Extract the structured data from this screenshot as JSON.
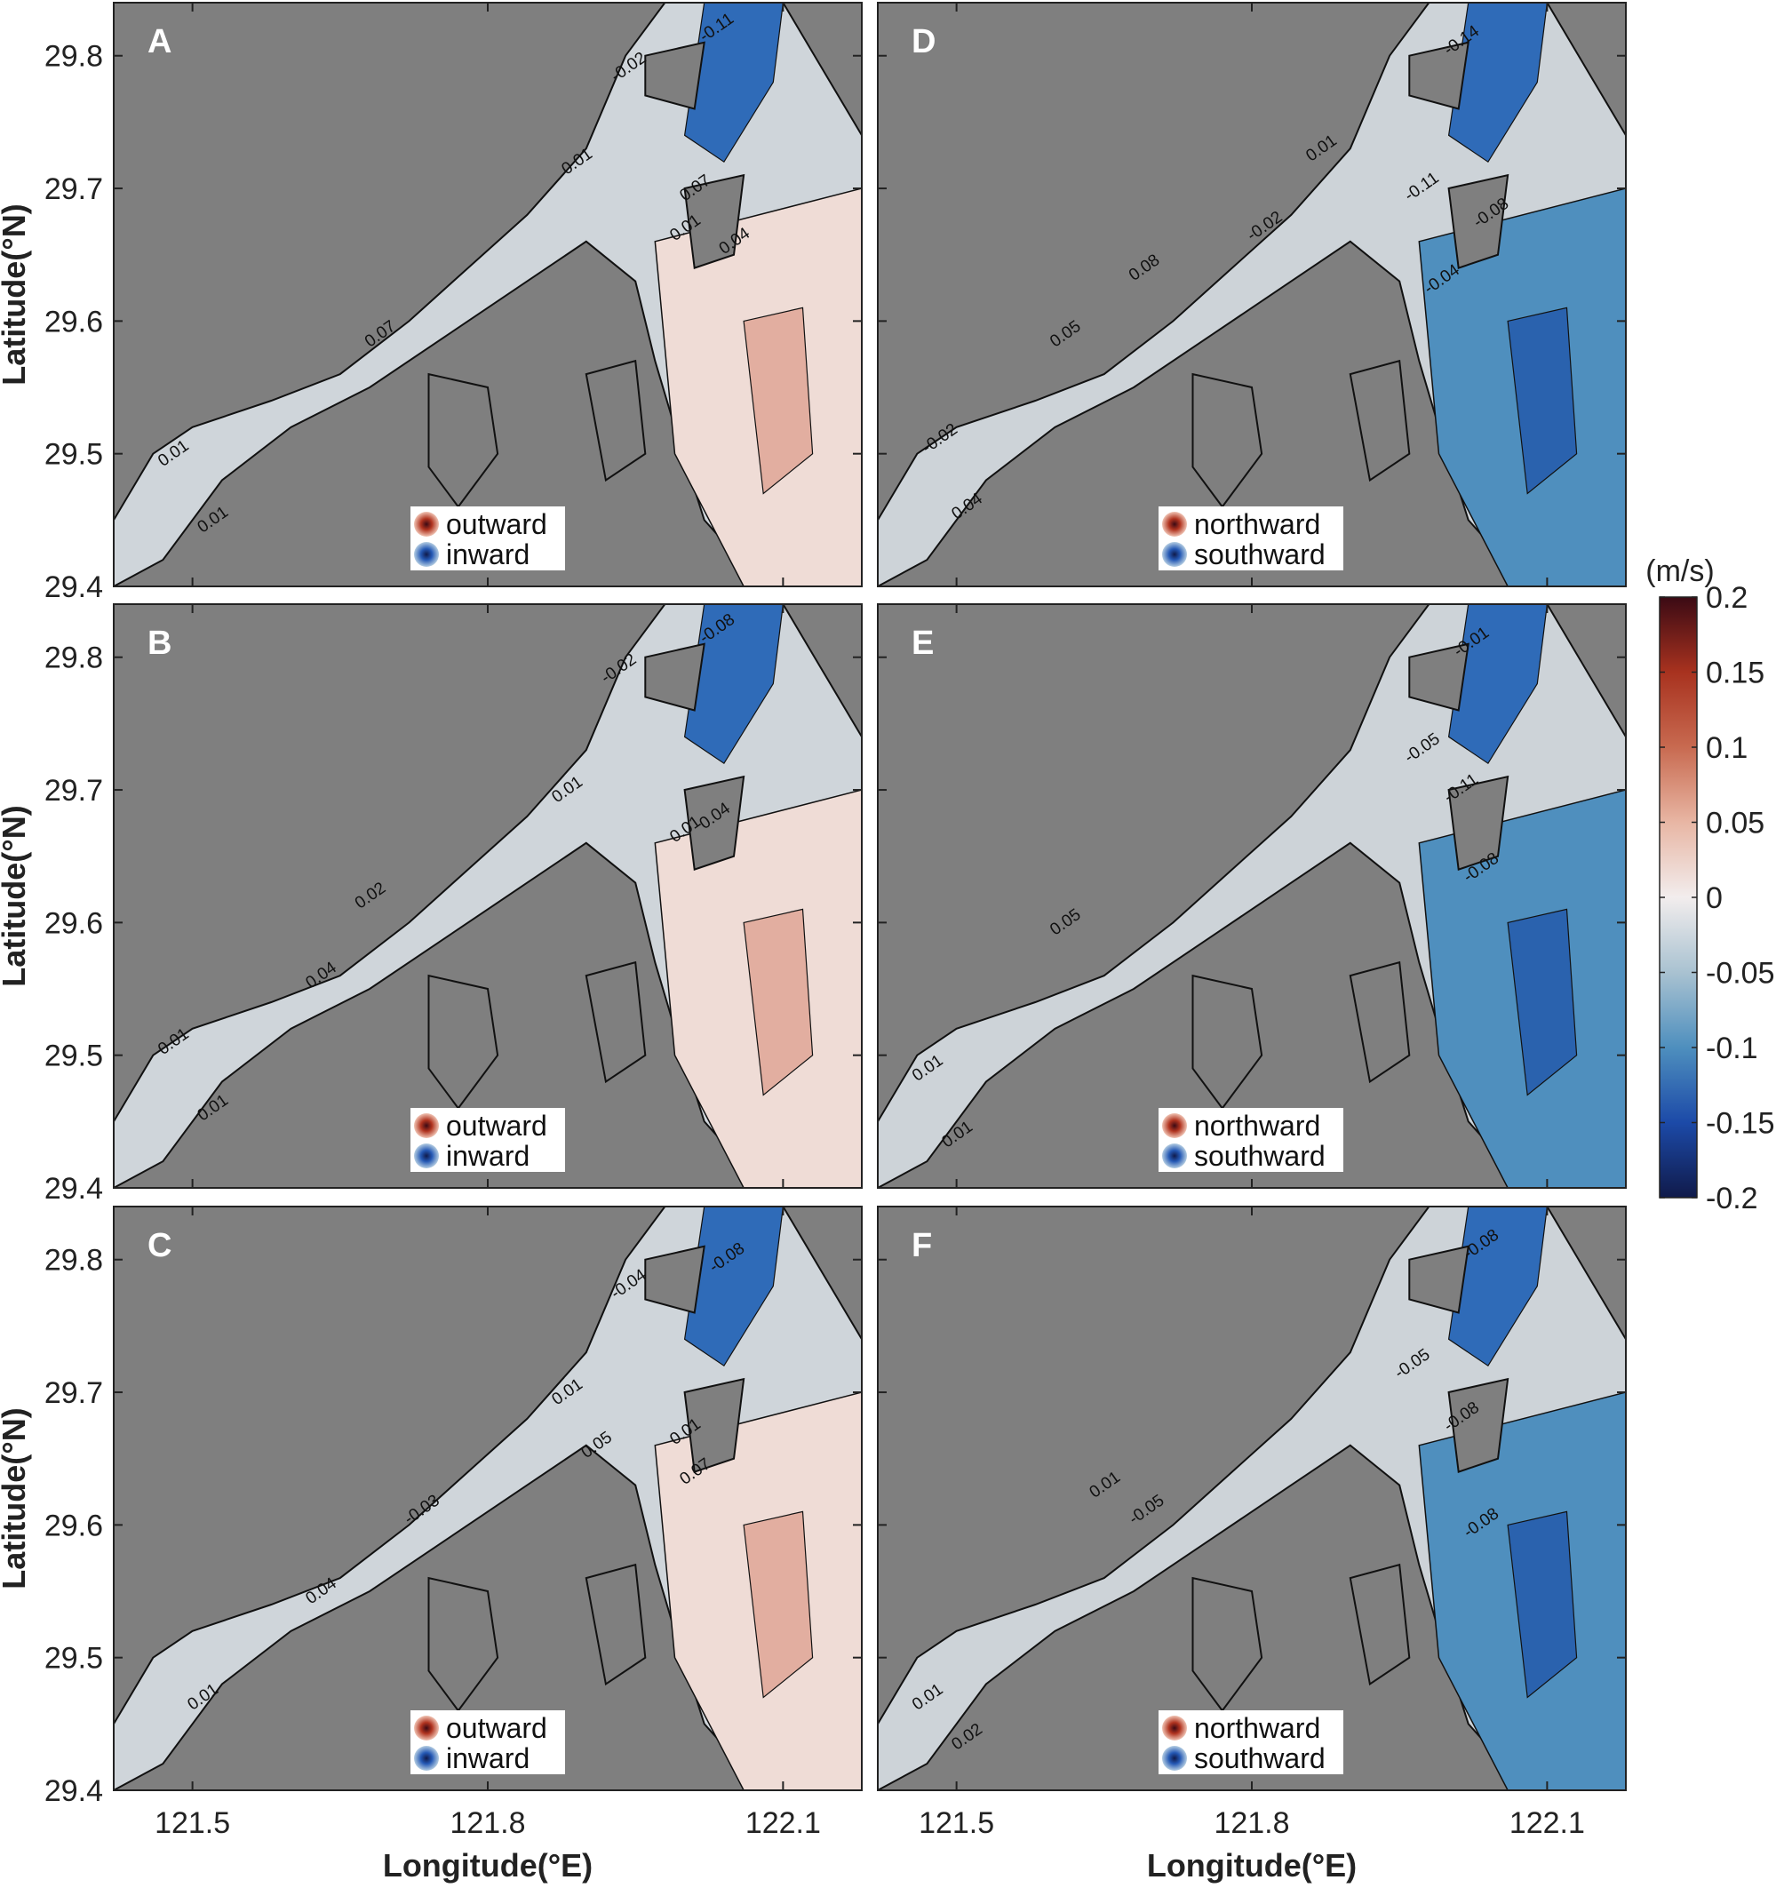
{
  "chart_data": {
    "type": "heatmap",
    "variable_unit": "(m/s)",
    "xlabel": "Longitude(°E)",
    "ylabel": "Latitude(°N)",
    "xlim": [
      121.42,
      122.18
    ],
    "ylim": [
      29.4,
      29.84
    ],
    "x_ticks": [
      121.5,
      121.8,
      122.1
    ],
    "x_tick_labels": [
      "121.5",
      "121.8",
      "122.1"
    ],
    "y_ticks": [
      29.4,
      29.5,
      29.6,
      29.7,
      29.8
    ],
    "y_tick_labels": [
      "29.4",
      "29.5",
      "29.6",
      "29.7",
      "29.8"
    ],
    "colorbar": {
      "min": -0.2,
      "max": 0.2,
      "ticks": [
        0.2,
        0.15,
        0.1,
        0.05,
        0,
        -0.05,
        -0.1,
        -0.15,
        -0.2
      ],
      "tick_labels": [
        "0.2",
        "0.15",
        "0.1",
        "0.05",
        "0",
        "-0.05",
        "-0.1",
        "-0.15",
        "-0.2"
      ],
      "colors": [
        "#3b0a14",
        "#a8321f",
        "#e0a08c",
        "#f2eaea",
        "#cdd3d8",
        "#9fbccb",
        "#4e8fbe",
        "#1c4aa8",
        "#101a4a"
      ]
    },
    "land_color": "#7f7f7f",
    "panels": [
      {
        "id": "A",
        "letter": "A",
        "column": 1,
        "row": 1,
        "component": "east-west",
        "legend": [
          "outward",
          "inward"
        ],
        "dominant_offshore_sign": "positive",
        "contour_labels": [
          {
            "text": "-0.11",
            "lon": 122.02,
            "lat": 29.81
          },
          {
            "text": "-0.02",
            "lon": 121.93,
            "lat": 29.78
          },
          {
            "text": "0.01",
            "lon": 121.88,
            "lat": 29.71
          },
          {
            "text": "0.07",
            "lon": 122.0,
            "lat": 29.69
          },
          {
            "text": "0.01",
            "lon": 121.99,
            "lat": 29.66
          },
          {
            "text": "0.04",
            "lon": 122.04,
            "lat": 29.65
          },
          {
            "text": "0.07",
            "lon": 121.68,
            "lat": 29.58
          },
          {
            "text": "0.01",
            "lon": 121.47,
            "lat": 29.49
          },
          {
            "text": "0.01",
            "lon": 121.51,
            "lat": 29.44
          }
        ]
      },
      {
        "id": "B",
        "letter": "B",
        "column": 1,
        "row": 2,
        "component": "east-west",
        "legend": [
          "outward",
          "inward"
        ],
        "dominant_offshore_sign": "positive",
        "contour_labels": [
          {
            "text": "-0.08",
            "lon": 122.02,
            "lat": 29.81
          },
          {
            "text": "-0.02",
            "lon": 121.92,
            "lat": 29.78
          },
          {
            "text": "0.01",
            "lon": 121.87,
            "lat": 29.69
          },
          {
            "text": "0.01",
            "lon": 121.99,
            "lat": 29.66
          },
          {
            "text": "0.04",
            "lon": 122.02,
            "lat": 29.67
          },
          {
            "text": "0.02",
            "lon": 121.67,
            "lat": 29.61
          },
          {
            "text": "0.04",
            "lon": 121.62,
            "lat": 29.55
          },
          {
            "text": "0.01",
            "lon": 121.47,
            "lat": 29.5
          },
          {
            "text": "0.01",
            "lon": 121.51,
            "lat": 29.45
          }
        ]
      },
      {
        "id": "C",
        "letter": "C",
        "column": 1,
        "row": 3,
        "component": "east-west",
        "legend": [
          "outward",
          "inward"
        ],
        "dominant_offshore_sign": "positive",
        "contour_labels": [
          {
            "text": "-0.08",
            "lon": 122.03,
            "lat": 29.79
          },
          {
            "text": "-0.04",
            "lon": 121.93,
            "lat": 29.77
          },
          {
            "text": "0.01",
            "lon": 121.87,
            "lat": 29.69
          },
          {
            "text": "0.05",
            "lon": 121.9,
            "lat": 29.65
          },
          {
            "text": "0.01",
            "lon": 121.99,
            "lat": 29.66
          },
          {
            "text": "0.07",
            "lon": 122.0,
            "lat": 29.63
          },
          {
            "text": "-0.03",
            "lon": 121.72,
            "lat": 29.6
          },
          {
            "text": "0.04",
            "lon": 121.62,
            "lat": 29.54
          },
          {
            "text": "0.01",
            "lon": 121.5,
            "lat": 29.46
          }
        ]
      },
      {
        "id": "D",
        "letter": "D",
        "column": 2,
        "row": 1,
        "component": "north-south",
        "legend": [
          "northward",
          "southward"
        ],
        "dominant_offshore_sign": "negative",
        "contour_labels": [
          {
            "text": "-0.14",
            "lon": 122.0,
            "lat": 29.8
          },
          {
            "text": "0.01",
            "lon": 121.86,
            "lat": 29.72
          },
          {
            "text": "-0.11",
            "lon": 121.96,
            "lat": 29.69
          },
          {
            "text": "-0.08",
            "lon": 122.03,
            "lat": 29.67
          },
          {
            "text": "-0.02",
            "lon": 121.8,
            "lat": 29.66
          },
          {
            "text": "0.08",
            "lon": 121.68,
            "lat": 29.63
          },
          {
            "text": "-0.04",
            "lon": 121.98,
            "lat": 29.62
          },
          {
            "text": "0.05",
            "lon": 121.6,
            "lat": 29.58
          },
          {
            "text": "-0.02",
            "lon": 121.47,
            "lat": 29.5
          },
          {
            "text": "0.04",
            "lon": 121.5,
            "lat": 29.45
          }
        ]
      },
      {
        "id": "E",
        "letter": "E",
        "column": 2,
        "row": 2,
        "component": "north-south",
        "legend": [
          "northward",
          "southward"
        ],
        "dominant_offshore_sign": "negative",
        "contour_labels": [
          {
            "text": "-0.01",
            "lon": 122.01,
            "lat": 29.8
          },
          {
            "text": "-0.05",
            "lon": 121.96,
            "lat": 29.72
          },
          {
            "text": "-0.11",
            "lon": 122.0,
            "lat": 29.69
          },
          {
            "text": "-0.08",
            "lon": 122.02,
            "lat": 29.63
          },
          {
            "text": "0.05",
            "lon": 121.6,
            "lat": 29.59
          },
          {
            "text": "0.01",
            "lon": 121.46,
            "lat": 29.48
          },
          {
            "text": "0.01",
            "lon": 121.49,
            "lat": 29.43
          }
        ]
      },
      {
        "id": "F",
        "letter": "F",
        "column": 2,
        "row": 3,
        "component": "north-south",
        "legend": [
          "northward",
          "southward"
        ],
        "dominant_offshore_sign": "negative",
        "contour_labels": [
          {
            "text": "-0.08",
            "lon": 122.02,
            "lat": 29.8
          },
          {
            "text": "-0.05",
            "lon": 121.95,
            "lat": 29.71
          },
          {
            "text": "-0.08",
            "lon": 122.0,
            "lat": 29.67
          },
          {
            "text": "-0.08",
            "lon": 122.02,
            "lat": 29.59
          },
          {
            "text": "0.01",
            "lon": 121.64,
            "lat": 29.62
          },
          {
            "text": "-0.05",
            "lon": 121.68,
            "lat": 29.6
          },
          {
            "text": "0.01",
            "lon": 121.46,
            "lat": 29.46
          },
          {
            "text": "0.02",
            "lon": 121.5,
            "lat": 29.43
          }
        ]
      }
    ]
  }
}
